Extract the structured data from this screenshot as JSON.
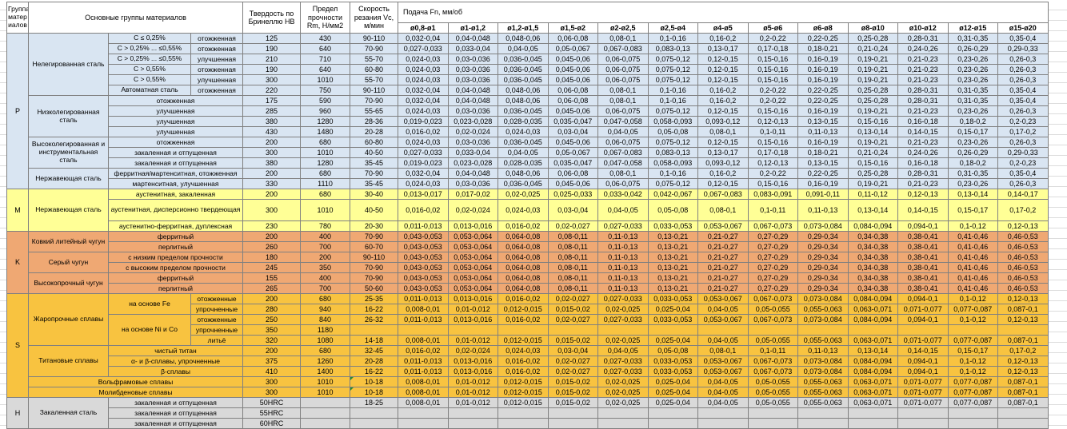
{
  "header": {
    "group_col": "Группа матер иалов",
    "materials_col": "Основные группы материалов",
    "hardness_col": "Твердость по Бринеллю HB",
    "strength_col": "Предел прочности Rm, Н/мм2",
    "speed_col": "Скорость резания Vc, м/мин",
    "feed_title": "Подача Fn, мм/об",
    "feed_cols": [
      "ø0,8-ø1",
      "ø1-ø1,2",
      "ø1,2-ø1,5",
      "ø1,5-ø2",
      "ø2-ø2,5",
      "ø2,5-ø4",
      "ø4-ø5",
      "ø5-ø6",
      "ø6-ø8",
      "ø8-ø10",
      "ø10-ø12",
      "ø12-ø15",
      "ø15-ø20"
    ]
  },
  "colors": {
    "P": "#d9e5f2",
    "M": "#ffff96",
    "K": "#efa873",
    "S": "#f8c340",
    "H": "#d9d9d9",
    "comment_marker": "#2e8b2e",
    "grid": "#808080"
  },
  "feed_sets": {
    "A": [
      "0,032-0,04",
      "0,04-0,048",
      "0,048-0,06",
      "0,06-0,08",
      "0,08-0,1",
      "0,1-0,16",
      "0,16-0,2",
      "0,2-0,22",
      "0,22-0,25",
      "0,25-0,28",
      "0,28-0,31",
      "0,31-0,35",
      "0,35-0,4"
    ],
    "B": [
      "0,027-0,033",
      "0,033-0,04",
      "0,04-0,05",
      "0,05-0,067",
      "0,067-0,083",
      "0,083-0,13",
      "0,13-0,17",
      "0,17-0,18",
      "0,18-0,21",
      "0,21-0,24",
      "0,24-0,26",
      "0,26-0,29",
      "0,29-0,33"
    ],
    "C": [
      "0,024-0,03",
      "0,03-0,036",
      "0,036-0,045",
      "0,045-0,06",
      "0,06-0,075",
      "0,075-0,12",
      "0,12-0,15",
      "0,15-0,16",
      "0,16-0,19",
      "0,19-0,21",
      "0,21-0,23",
      "0,23-0,26",
      "0,26-0,3"
    ],
    "D": [
      "0,019-0,023",
      "0,023-0,028",
      "0,028-0,035",
      "0,035-0,047",
      "0,047-0,058",
      "0,058-0,093",
      "0,093-0,12",
      "0,12-0,13",
      "0,13-0,15",
      "0,15-0,16",
      "0,16-0,18",
      "0,18-0,2",
      "0,2-0,23"
    ],
    "E": [
      "0,016-0,02",
      "0,02-0,024",
      "0,024-0,03",
      "0,03-0,04",
      "0,04-0,05",
      "0,05-0,08",
      "0,08-0,1",
      "0,1-0,11",
      "0,11-0,13",
      "0,13-0,14",
      "0,14-0,15",
      "0,15-0,17",
      "0,17-0,2"
    ],
    "M1": [
      "0,013-0,017",
      "0,017-0,02",
      "0,02-0,025",
      "0,025-0,033",
      "0,033-0,042",
      "0,042-0,067",
      "0,067-0,083",
      "0,083-0,091",
      "0,091-0,11",
      "0,11-0,12",
      "0,12-0,13",
      "0,13-0,14",
      "0,14-0,17"
    ],
    "F": [
      "0,011-0,013",
      "0,013-0,016",
      "0,016-0,02",
      "0,02-0,027",
      "0,027-0,033",
      "0,033-0,053",
      "0,053-0,067",
      "0,067-0,073",
      "0,073-0,084",
      "0,084-0,094",
      "0,094-0,1",
      "0,1-0,12",
      "0,12-0,13"
    ],
    "K": [
      "0,043-0,053",
      "0,053-0,064",
      "0,064-0,08",
      "0,08-0,11",
      "0,11-0,13",
      "0,13-0,21",
      "0,21-0,27",
      "0,27-0,29",
      "0,29-0,34",
      "0,34-0,38",
      "0,38-0,41",
      "0,41-0,46",
      "0,46-0,53"
    ],
    "G": [
      "0,008-0,01",
      "0,01-0,012",
      "0,012-0,015",
      "0,015-0,02",
      "0,02-0,025",
      "0,025-0,04",
      "0,04-0,05",
      "0,05-0,055",
      "0,055-0,063",
      "0,063-0,071",
      "0,071-0,077",
      "0,077-0,087",
      "0,087-0,1"
    ],
    "EMPTY": [
      "",
      "",
      "",
      "",
      "",
      "",
      "",
      "",
      "",
      "",
      "",
      "",
      ""
    ]
  },
  "sections": [
    {
      "group": "P",
      "cls": "p",
      "rows": [
        {
          "fam": [
            "Нелегированная сталь",
            6
          ],
          "sub": [
            "C ≤ 0,25%",
            1
          ],
          "cond": "отожженная",
          "hb": "125",
          "rm": "430",
          "vc": "90-110",
          "feeds": "A"
        },
        {
          "sub": [
            "C > 0,25% ... ≤0,55%",
            1
          ],
          "cond": "отожженная",
          "hb": "190",
          "rm": "640",
          "vc": "70-90",
          "feeds": "B"
        },
        {
          "sub": [
            "C > 0,25% ... ≤0,55%",
            1
          ],
          "cond": "улучшенная",
          "hb": "210",
          "rm": "710",
          "vc": "55-70",
          "feeds": "C"
        },
        {
          "sub": [
            "C > 0,55%",
            1
          ],
          "cond": "отожженная",
          "hb": "190",
          "rm": "640",
          "vc": "60-80",
          "feeds": "C"
        },
        {
          "sub": [
            "C > 0,55%",
            1
          ],
          "cond": "улучшенная",
          "hb": "300",
          "rm": "1010",
          "vc": "55-70",
          "feeds": "C"
        },
        {
          "sub": [
            "Автоматная сталь",
            1
          ],
          "cond": "отожженная",
          "hb": "220",
          "rm": "750",
          "vc": "90-110",
          "feeds": "A"
        },
        {
          "fam": [
            "Низколегированная сталь",
            4
          ],
          "cond": "отожженная",
          "condSpan": 2,
          "hb": "175",
          "rm": "590",
          "vc": "70-90",
          "feeds": "A"
        },
        {
          "cond": "улучшенная",
          "condSpan": 2,
          "hb": "285",
          "rm": "960",
          "vc": "55-65",
          "feeds": "C"
        },
        {
          "cond": "улучшенная",
          "condSpan": 2,
          "hb": "380",
          "rm": "1280",
          "vc": "28-36",
          "feeds": "D"
        },
        {
          "cond": "улучшенная",
          "condSpan": 2,
          "hb": "430",
          "rm": "1480",
          "vc": "20-28",
          "feeds": "E"
        },
        {
          "fam": [
            "Высоколегированная и инструментальная сталь",
            3
          ],
          "cond": "отожженная",
          "condSpan": 2,
          "hb": "200",
          "rm": "680",
          "vc": "60-80",
          "feeds": "C"
        },
        {
          "cond": "закаленная и отпущенная",
          "condSpan": 2,
          "hb": "300",
          "rm": "1010",
          "vc": "40-50",
          "feeds": "B"
        },
        {
          "cond": "закаленная и отпущенная",
          "condSpan": 2,
          "hb": "380",
          "rm": "1280",
          "vc": "35-45",
          "feeds": "D"
        },
        {
          "fam": [
            "Нержавеющая сталь",
            2
          ],
          "cond": "ферритная/мартенситная, отожженная",
          "condSpan": 2,
          "hb": "200",
          "rm": "680",
          "vc": "70-90",
          "feeds": "A"
        },
        {
          "cond": "мартенситная, улучшенная",
          "condSpan": 2,
          "hb": "330",
          "rm": "1110",
          "vc": "35-45",
          "feeds": "C"
        }
      ]
    },
    {
      "group": "M",
      "cls": "m",
      "rows": [
        {
          "fam": [
            "Нержавеющая сталь",
            3
          ],
          "cond": "аустенитная, закаленная",
          "condSpan": 2,
          "hb": "200",
          "rm": "680",
          "vc": "30-40",
          "feeds": "M1"
        },
        {
          "cond": "аустенитная, дисперсионно твердеющая",
          "condSpan": 2,
          "tall": true,
          "hb": "300",
          "rm": "1010",
          "vc": "40-50",
          "feeds": "E"
        },
        {
          "cond": "аустенитно-ферритная, дуплексная",
          "condSpan": 2,
          "hb": "230",
          "rm": "780",
          "vc": "20-30",
          "feeds": "F"
        }
      ]
    },
    {
      "group": "K",
      "cls": "k",
      "rows": [
        {
          "fam": [
            "Ковкий литейный чугун",
            2
          ],
          "cond": "ферритный",
          "condSpan": 2,
          "hb": "200",
          "rm": "400",
          "vc": "70-90",
          "feeds": "K"
        },
        {
          "cond": "перлитный",
          "condSpan": 2,
          "hb": "260",
          "rm": "700",
          "vc": "60-70",
          "feeds": "K"
        },
        {
          "fam": [
            "Серый чугун",
            2
          ],
          "cond": "с низким пределом прочности",
          "condSpan": 2,
          "hb": "180",
          "rm": "200",
          "vc": "90-110",
          "feeds": "K"
        },
        {
          "cond": "с высоким пределом прочности",
          "condSpan": 2,
          "hb": "245",
          "rm": "350",
          "vc": "70-90",
          "feeds": "K"
        },
        {
          "fam": [
            "Высокопрочный чугун",
            2
          ],
          "cond": "ферритный",
          "condSpan": 2,
          "hb": "155",
          "rm": "400",
          "vc": "70-90",
          "feeds": "K"
        },
        {
          "cond": "перлитный",
          "condSpan": 2,
          "hb": "265",
          "rm": "700",
          "vc": "50-60",
          "feeds": "K"
        }
      ]
    },
    {
      "group": "S",
      "cls": "s",
      "rows": [
        {
          "fam": [
            "Жаропрочные сплавы",
            5
          ],
          "sub": [
            "на основе Fe",
            2
          ],
          "cond": "отожженные",
          "hb": "200",
          "rm": "680",
          "vc": "25-35",
          "feeds": "F"
        },
        {
          "cond": "упрочненные",
          "hb": "280",
          "rm": "940",
          "vc": "16-22",
          "feeds": "G"
        },
        {
          "sub": [
            "на основе Ni и Co",
            3
          ],
          "cond": "отожженные",
          "hb": "250",
          "rm": "840",
          "vc": "26-32",
          "feeds": "F"
        },
        {
          "cond": "упрочненные",
          "hb": "350",
          "rm": "1180",
          "vc": "",
          "feeds": "EMPTY"
        },
        {
          "cond": "литьё",
          "hb": "320",
          "rm": "1080",
          "vc": "14-18",
          "feeds": "G"
        },
        {
          "fam": [
            "Титановые сплавы",
            3
          ],
          "cond": "чистый титан",
          "condSpan": 2,
          "hb": "200",
          "rm": "680",
          "vc": "32-45",
          "feeds": "E"
        },
        {
          "cond": "α- и β-сплавы, упрочненные",
          "condSpan": 2,
          "hb": "375",
          "rm": "1260",
          "vc": "20-28",
          "feeds": "F"
        },
        {
          "cond": "β-сплавы",
          "condSpan": 2,
          "hb": "410",
          "rm": "1400",
          "vc": "16-22",
          "feeds": "F"
        },
        {
          "wide": "Вольфрамовые сплавы",
          "hb": "300",
          "rm": "1010",
          "vc": "10-18",
          "feeds": "G",
          "mark": true
        },
        {
          "wide": "Молибденовые сплавы",
          "hb": "300",
          "rm": "1010",
          "vc": "10-18",
          "feeds": "G",
          "mark": true
        }
      ]
    },
    {
      "group": "H",
      "cls": "h",
      "rows": [
        {
          "fam": [
            "Закаленная сталь",
            3
          ],
          "cond": "закаленная и отпущенная",
          "condSpan": 2,
          "hb": "50HRC",
          "rm": "",
          "vc": "18-25",
          "feeds": "G"
        },
        {
          "cond": "закаленная и отпущенная",
          "condSpan": 2,
          "hb": "55HRC",
          "rm": "",
          "vc": "",
          "feeds": "EMPTY"
        },
        {
          "cond": "закаленная и отпущенная",
          "condSpan": 2,
          "hb": "60HRC",
          "rm": "",
          "vc": "",
          "feeds": "EMPTY"
        }
      ]
    }
  ]
}
